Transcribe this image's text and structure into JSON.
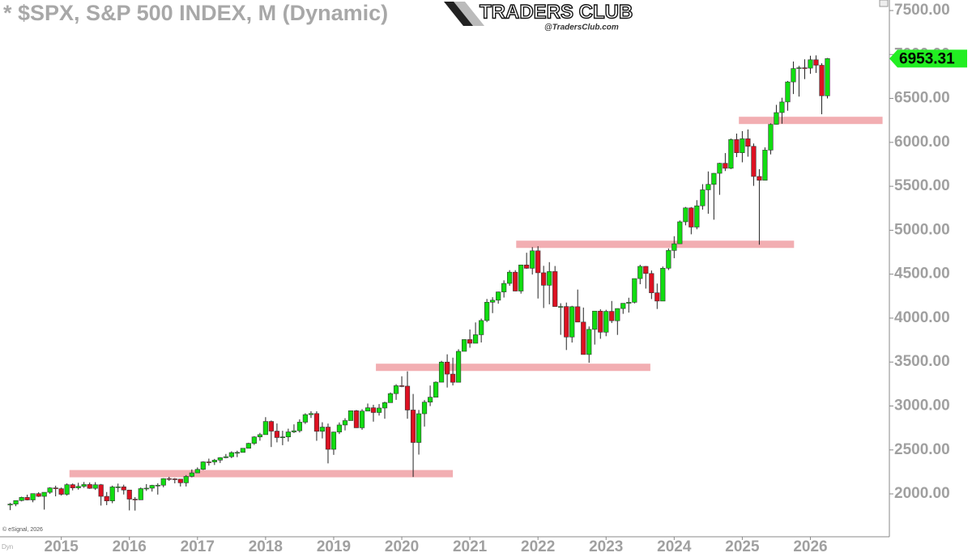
{
  "chart_data": {
    "type": "candlestick",
    "title": "* $SPX, S&P 500 INDEX, M (Dynamic)",
    "logo": {
      "name": "TRADERS CLUB",
      "site": "@TradersClub.com"
    },
    "credit": "© eSignal, 2026",
    "mode": "Dyn",
    "colors": {
      "up": "#11dd11",
      "down": "#dd1122",
      "wick": "#222222",
      "level": "#f2aeb2",
      "tag": "#22ee22"
    },
    "xlim": [
      2014.1,
      2027.16
    ],
    "xticks": [
      2015,
      2016,
      2017,
      2018,
      2019,
      2020,
      2021,
      2022,
      2023,
      2024,
      2025,
      2026
    ],
    "ylim": [
      1512,
      7620
    ],
    "yticks": [
      {
        "value": 2000,
        "label": "2000.00"
      },
      {
        "value": 2500,
        "label": "2500.00"
      },
      {
        "value": 3000,
        "label": "3000.00"
      },
      {
        "value": 3500,
        "label": "3500.00"
      },
      {
        "value": 4000,
        "label": "4000.00"
      },
      {
        "value": 4500,
        "label": "4500.00"
      },
      {
        "value": 5000,
        "label": "5000.00"
      },
      {
        "value": 5500,
        "label": "5500.00"
      },
      {
        "value": 6000,
        "label": "6000.00"
      },
      {
        "value": 6500,
        "label": "6500.00"
      },
      {
        "value": 7000,
        "label": "7000.00"
      },
      {
        "value": 7500,
        "label": "7500.00"
      }
    ],
    "levels": [
      {
        "value": 2230,
        "x_start": 2015.12,
        "x_end": 2020.75
      },
      {
        "value": 3440,
        "x_start": 2019.62,
        "x_end": 2023.65
      },
      {
        "value": 4840,
        "x_start": 2021.68,
        "x_end": 2025.76
      },
      {
        "value": 6250,
        "x_start": 2024.95,
        "x_end": 2027.06
      }
    ],
    "x": [
      2014.25,
      2014.333,
      2014.417,
      2014.5,
      2014.583,
      2014.667,
      2014.75,
      2014.833,
      2014.917,
      2015,
      2015.083,
      2015.167,
      2015.25,
      2015.333,
      2015.417,
      2015.5,
      2015.583,
      2015.667,
      2015.75,
      2015.833,
      2015.917,
      2016,
      2016.083,
      2016.167,
      2016.25,
      2016.333,
      2016.417,
      2016.5,
      2016.583,
      2016.667,
      2016.75,
      2016.833,
      2016.917,
      2017,
      2017.083,
      2017.167,
      2017.25,
      2017.333,
      2017.417,
      2017.5,
      2017.583,
      2017.667,
      2017.75,
      2017.833,
      2017.917,
      2018,
      2018.083,
      2018.167,
      2018.25,
      2018.333,
      2018.417,
      2018.5,
      2018.583,
      2018.667,
      2018.75,
      2018.833,
      2018.917,
      2019,
      2019.083,
      2019.167,
      2019.25,
      2019.333,
      2019.417,
      2019.5,
      2019.583,
      2019.667,
      2019.75,
      2019.833,
      2019.917,
      2020,
      2020.083,
      2020.167,
      2020.25,
      2020.333,
      2020.417,
      2020.5,
      2020.583,
      2020.667,
      2020.75,
      2020.833,
      2020.917,
      2021,
      2021.083,
      2021.167,
      2021.25,
      2021.333,
      2021.417,
      2021.5,
      2021.583,
      2021.667,
      2021.75,
      2021.833,
      2021.917,
      2022,
      2022.083,
      2022.167,
      2022.25,
      2022.333,
      2022.417,
      2022.5,
      2022.583,
      2022.667,
      2022.75,
      2022.833,
      2022.917,
      2023,
      2023.083,
      2023.167,
      2023.25,
      2023.333,
      2023.417,
      2023.5,
      2023.583,
      2023.667,
      2023.75,
      2023.833,
      2023.917,
      2024,
      2024.083,
      2024.167,
      2024.25,
      2024.333,
      2024.417,
      2024.5,
      2024.583,
      2024.667,
      2024.75,
      2024.833,
      2024.917,
      2025,
      2025.083,
      2025.167,
      2025.25,
      2025.333,
      2025.417,
      2025.5,
      2025.583,
      2025.667,
      2025.75,
      2025.833,
      2025.917,
      2026,
      2026.083,
      2026.167,
      2026.25
    ],
    "open": [
      1873,
      1884,
      1924,
      1960,
      1931,
      2003,
      1972,
      2018,
      2068,
      2059,
      1995,
      2105,
      2068,
      2086,
      2107,
      2063,
      2104,
      1972,
      1920,
      2079,
      2080,
      2044,
      1940,
      1932,
      2060,
      2065,
      2097,
      2099,
      2174,
      2171,
      2168,
      2126,
      2199,
      2239,
      2279,
      2364,
      2363,
      2384,
      2412,
      2423,
      2470,
      2472,
      2519,
      2575,
      2648,
      2674,
      2824,
      2714,
      2641,
      2648,
      2705,
      2718,
      2816,
      2902,
      2914,
      2712,
      2760,
      2507,
      2704,
      2784,
      2834,
      2946,
      2752,
      2942,
      2980,
      2926,
      2977,
      3038,
      3141,
      3231,
      3226,
      2954,
      2585,
      2912,
      3044,
      3100,
      3271,
      3500,
      3363,
      3270,
      3622,
      3756,
      3714,
      3811,
      3973,
      4181,
      4204,
      4298,
      4395,
      4523,
      4308,
      4605,
      4567,
      4766,
      4516,
      4374,
      4530,
      4132,
      4132,
      3785,
      4130,
      3955,
      3586,
      3872,
      4080,
      3840,
      4077,
      3970,
      4109,
      4169,
      4180,
      4450,
      4589,
      4508,
      4288,
      4194,
      4568,
      4770,
      4846,
      5096,
      5254,
      5036,
      5278,
      5460,
      5522,
      5648,
      5762,
      5705,
      6032,
      5882,
      6041,
      5955,
      5612,
      5569,
      5912,
      6205,
      6339,
      6460,
      6688,
      6840,
      6849,
      6845,
      6940,
      6878,
      6530
    ],
    "high": [
      1897,
      1926,
      1968,
      1991,
      2005,
      2019,
      2019,
      2076,
      2093,
      2072,
      2119,
      2118,
      2126,
      2135,
      2130,
      2133,
      2113,
      2021,
      2094,
      2117,
      2104,
      2044,
      1963,
      2073,
      2111,
      2103,
      2121,
      2178,
      2194,
      2179,
      2169,
      2214,
      2278,
      2301,
      2371,
      2401,
      2398,
      2418,
      2454,
      2484,
      2491,
      2520,
      2582,
      2657,
      2694,
      2873,
      2835,
      2801,
      2718,
      2742,
      2791,
      2848,
      2917,
      2941,
      2940,
      2815,
      2800,
      2708,
      2813,
      2861,
      2949,
      2955,
      2964,
      3028,
      3014,
      3022,
      3050,
      3154,
      3248,
      3338,
      3394,
      3137,
      2955,
      3068,
      3233,
      3280,
      3514,
      3588,
      3550,
      3646,
      3760,
      3871,
      3951,
      3995,
      4218,
      4238,
      4302,
      4430,
      4546,
      4546,
      4608,
      4744,
      4808,
      4818,
      4595,
      4637,
      4593,
      4169,
      4177,
      4140,
      4325,
      4120,
      3905,
      4080,
      4101,
      4095,
      4195,
      4111,
      4170,
      4232,
      4449,
      4607,
      4593,
      4542,
      4393,
      4587,
      4793,
      4932,
      5111,
      5265,
      5264,
      5342,
      5524,
      5669,
      5651,
      5768,
      5878,
      6044,
      6100,
      6128,
      6147,
      5987,
      5695,
      5943,
      6216,
      6427,
      6508,
      6699,
      6920,
      6870,
      6945,
      6986,
      6990,
      6900,
      6960
    ],
    "low": [
      1815,
      1860,
      1915,
      1926,
      1905,
      1965,
      1821,
      2001,
      1972,
      1981,
      1980,
      2040,
      2048,
      2068,
      2057,
      2045,
      1867,
      1872,
      1894,
      2020,
      1993,
      1812,
      1810,
      1931,
      2034,
      2026,
      1992,
      2075,
      2148,
      2120,
      2084,
      2084,
      2188,
      2245,
      2271,
      2322,
      2329,
      2352,
      2405,
      2407,
      2418,
      2469,
      2520,
      2557,
      2605,
      2682,
      2533,
      2586,
      2554,
      2595,
      2692,
      2698,
      2796,
      2864,
      2604,
      2631,
      2347,
      2444,
      2681,
      2722,
      2848,
      2750,
      2729,
      2953,
      2822,
      2891,
      2855,
      3050,
      3070,
      3214,
      2855,
      2192,
      2447,
      2766,
      2999,
      3102,
      3271,
      3210,
      3234,
      3280,
      3633,
      3663,
      3724,
      3723,
      3955,
      4057,
      4164,
      4234,
      4368,
      4305,
      4279,
      4561,
      4496,
      4223,
      4115,
      4157,
      4129,
      3810,
      3637,
      3722,
      3955,
      3585,
      3492,
      3699,
      3765,
      3794,
      3944,
      3809,
      4049,
      4063,
      4167,
      4386,
      4336,
      4217,
      4104,
      4194,
      4547,
      4682,
      4845,
      5056,
      4954,
      5011,
      5234,
      5188,
      5120,
      5403,
      5674,
      5696,
      5832,
      5773,
      5837,
      5505,
      4835,
      5578,
      5863,
      6202,
      6212,
      6360,
      6550,
      6521,
      6720,
      6780,
      6790,
      6320,
      6500
    ],
    "close": [
      1884,
      1924,
      1960,
      1931,
      2003,
      1972,
      2018,
      2068,
      2059,
      1995,
      2105,
      2068,
      2086,
      2107,
      2063,
      2104,
      1972,
      1920,
      2079,
      2080,
      2044,
      1940,
      1932,
      2060,
      2065,
      2097,
      2099,
      2174,
      2171,
      2168,
      2126,
      2199,
      2239,
      2279,
      2364,
      2363,
      2384,
      2412,
      2423,
      2470,
      2472,
      2519,
      2575,
      2648,
      2674,
      2824,
      2714,
      2641,
      2648,
      2705,
      2718,
      2816,
      2902,
      2914,
      2712,
      2760,
      2507,
      2704,
      2784,
      2834,
      2946,
      2752,
      2942,
      2980,
      2926,
      2977,
      3038,
      3141,
      3231,
      3226,
      2954,
      2585,
      2912,
      3044,
      3100,
      3271,
      3500,
      3363,
      3270,
      3622,
      3756,
      3714,
      3811,
      3973,
      4181,
      4204,
      4298,
      4395,
      4523,
      4308,
      4605,
      4567,
      4766,
      4516,
      4374,
      4530,
      4132,
      4132,
      3785,
      4130,
      3955,
      3586,
      3872,
      4080,
      3840,
      4077,
      3970,
      4109,
      4169,
      4180,
      4450,
      4589,
      4508,
      4288,
      4194,
      4568,
      4770,
      4846,
      5096,
      5254,
      5036,
      5278,
      5460,
      5522,
      5648,
      5762,
      5705,
      6032,
      5882,
      6041,
      5955,
      5612,
      5569,
      5912,
      6205,
      6339,
      6460,
      6688,
      6840,
      6849,
      6845,
      6940,
      6878,
      6530,
      6953.31
    ]
  }
}
